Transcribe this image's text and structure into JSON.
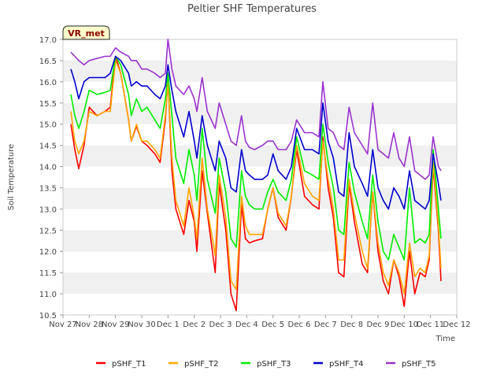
{
  "chart_data": {
    "type": "line",
    "title": "Peltier SHF Temperatures",
    "xlabel": "Time",
    "ylabel": "Soil Temperature",
    "badge": "VR_met",
    "ylim": [
      10.5,
      17.0
    ],
    "yticks": [
      "10.5",
      "11.0",
      "11.5",
      "12.0",
      "12.5",
      "13.0",
      "13.5",
      "14.0",
      "14.5",
      "15.0",
      "15.5",
      "16.0",
      "16.5",
      "17.0"
    ],
    "xlim": [
      0,
      15
    ],
    "xticks": [
      "Nov 27",
      "Nov 28",
      "Nov 29",
      "Nov 30",
      "Dec 1",
      "Dec 2",
      "Dec 3",
      "Dec 4",
      "Dec 5",
      "Dec 6",
      "Dec 7",
      "Dec 8",
      "Dec 9",
      "Dec 10",
      "Dec 11",
      "Dec 12"
    ],
    "grid": "horizontal bands",
    "legend_position": "bottom",
    "colors": [
      "#ff0000",
      "#ffa500",
      "#00ee00",
      "#0000cc",
      "#9a32cd"
    ],
    "series": [
      {
        "name": "pSHF_T1",
        "x": [
          0.3,
          0.45,
          0.6,
          0.8,
          1.0,
          1.3,
          1.6,
          1.8,
          2.0,
          2.2,
          2.5,
          2.6,
          2.8,
          3.0,
          3.2,
          3.5,
          3.7,
          3.9,
          4.0,
          4.15,
          4.3,
          4.6,
          4.8,
          5.0,
          5.1,
          5.3,
          5.5,
          5.8,
          5.95,
          6.2,
          6.4,
          6.6,
          6.8,
          6.95,
          7.1,
          7.3,
          7.6,
          7.8,
          8.0,
          8.2,
          8.5,
          8.7,
          8.9,
          9.2,
          9.5,
          9.75,
          9.9,
          10.1,
          10.3,
          10.5,
          10.7,
          10.9,
          11.1,
          11.4,
          11.6,
          11.8,
          12.0,
          12.2,
          12.4,
          12.6,
          12.8,
          13.0,
          13.2,
          13.4,
          13.6,
          13.8,
          13.95,
          14.1,
          14.3,
          14.4
        ],
        "values": [
          15.0,
          14.4,
          13.95,
          14.5,
          15.4,
          15.2,
          15.3,
          15.4,
          16.6,
          16.2,
          15.1,
          14.6,
          14.95,
          14.6,
          14.5,
          14.3,
          14.1,
          15.1,
          16.1,
          13.9,
          13.0,
          12.4,
          13.2,
          12.7,
          12.0,
          13.9,
          12.9,
          11.5,
          13.6,
          12.5,
          11.0,
          10.6,
          13.1,
          12.3,
          12.2,
          12.25,
          12.3,
          13.0,
          13.5,
          12.8,
          12.5,
          13.3,
          14.4,
          13.3,
          13.1,
          13.0,
          14.7,
          13.5,
          12.8,
          11.5,
          11.4,
          13.6,
          12.7,
          11.7,
          11.5,
          13.4,
          12.0,
          11.3,
          11.0,
          11.8,
          11.4,
          10.7,
          12.0,
          11.0,
          11.5,
          11.4,
          11.8,
          14.0,
          12.5,
          11.3
        ]
      },
      {
        "name": "pSHF_T2",
        "x": [
          0.3,
          0.45,
          0.6,
          0.8,
          1.0,
          1.3,
          1.6,
          1.8,
          2.0,
          2.2,
          2.5,
          2.6,
          2.8,
          3.0,
          3.2,
          3.5,
          3.7,
          3.9,
          4.0,
          4.15,
          4.3,
          4.6,
          4.8,
          5.0,
          5.1,
          5.3,
          5.5,
          5.8,
          5.95,
          6.2,
          6.4,
          6.6,
          6.8,
          6.95,
          7.1,
          7.3,
          7.6,
          7.8,
          8.0,
          8.2,
          8.5,
          8.7,
          8.9,
          9.2,
          9.5,
          9.75,
          9.9,
          10.1,
          10.3,
          10.5,
          10.7,
          10.9,
          11.1,
          11.4,
          11.6,
          11.8,
          12.0,
          12.2,
          12.4,
          12.6,
          12.8,
          13.0,
          13.2,
          13.4,
          13.6,
          13.8,
          13.95,
          14.1,
          14.3,
          14.4
        ],
        "values": [
          15.3,
          14.6,
          14.3,
          14.6,
          15.3,
          15.2,
          15.3,
          15.3,
          16.5,
          16.2,
          15.1,
          14.6,
          15.0,
          14.6,
          14.6,
          14.4,
          14.2,
          15.2,
          16.0,
          14.2,
          13.2,
          12.6,
          13.5,
          12.8,
          12.3,
          14.2,
          13.0,
          11.9,
          13.8,
          12.8,
          11.3,
          11.1,
          13.3,
          12.6,
          12.4,
          12.4,
          12.4,
          13.0,
          13.5,
          12.9,
          12.6,
          13.3,
          14.5,
          13.6,
          13.3,
          13.2,
          14.6,
          13.7,
          13.0,
          11.8,
          11.8,
          13.7,
          12.9,
          12.0,
          11.6,
          13.4,
          12.2,
          11.5,
          11.2,
          11.8,
          11.5,
          11.0,
          12.2,
          11.4,
          11.6,
          11.5,
          11.9,
          14.1,
          12.6,
          11.6
        ]
      },
      {
        "name": "pSHF_T3",
        "x": [
          0.3,
          0.45,
          0.6,
          0.8,
          1.0,
          1.3,
          1.6,
          1.8,
          2.0,
          2.2,
          2.5,
          2.6,
          2.8,
          3.0,
          3.2,
          3.5,
          3.7,
          3.9,
          4.0,
          4.15,
          4.3,
          4.6,
          4.8,
          5.0,
          5.1,
          5.3,
          5.5,
          5.8,
          5.95,
          6.2,
          6.4,
          6.6,
          6.8,
          6.95,
          7.1,
          7.3,
          7.6,
          7.8,
          8.0,
          8.2,
          8.5,
          8.7,
          8.9,
          9.2,
          9.5,
          9.75,
          9.9,
          10.1,
          10.3,
          10.5,
          10.7,
          10.9,
          11.1,
          11.4,
          11.6,
          11.8,
          12.0,
          12.2,
          12.4,
          12.6,
          12.8,
          13.0,
          13.2,
          13.4,
          13.6,
          13.8,
          13.95,
          14.1,
          14.3,
          14.4
        ],
        "values": [
          15.7,
          15.2,
          14.9,
          15.3,
          15.8,
          15.7,
          15.75,
          15.8,
          16.6,
          16.4,
          15.7,
          15.2,
          15.6,
          15.3,
          15.4,
          15.1,
          14.9,
          15.6,
          16.2,
          15.2,
          14.2,
          13.6,
          14.4,
          13.8,
          13.2,
          14.9,
          13.7,
          12.9,
          14.2,
          13.4,
          12.3,
          12.1,
          13.9,
          13.3,
          13.1,
          13.0,
          13.0,
          13.4,
          13.7,
          13.4,
          13.2,
          13.7,
          14.7,
          13.9,
          13.8,
          13.7,
          15.0,
          14.1,
          13.5,
          12.5,
          12.4,
          14.1,
          13.4,
          12.7,
          12.3,
          13.8,
          12.7,
          12.0,
          11.8,
          12.4,
          12.1,
          11.8,
          13.5,
          12.2,
          12.3,
          12.2,
          12.4,
          14.4,
          13.0,
          12.3
        ]
      },
      {
        "name": "pSHF_T4",
        "x": [
          0.3,
          0.45,
          0.6,
          0.8,
          1.0,
          1.3,
          1.6,
          1.8,
          2.0,
          2.2,
          2.5,
          2.6,
          2.8,
          3.0,
          3.2,
          3.5,
          3.7,
          3.9,
          4.0,
          4.15,
          4.3,
          4.6,
          4.8,
          5.0,
          5.1,
          5.3,
          5.5,
          5.8,
          5.95,
          6.2,
          6.4,
          6.6,
          6.8,
          6.95,
          7.1,
          7.3,
          7.6,
          7.8,
          8.0,
          8.2,
          8.5,
          8.7,
          8.9,
          9.2,
          9.5,
          9.75,
          9.9,
          10.1,
          10.3,
          10.5,
          10.7,
          10.9,
          11.1,
          11.4,
          11.6,
          11.8,
          12.0,
          12.2,
          12.4,
          12.6,
          12.8,
          13.0,
          13.2,
          13.4,
          13.6,
          13.8,
          13.95,
          14.1,
          14.3,
          14.4
        ],
        "values": [
          16.3,
          16.0,
          15.6,
          16.0,
          16.1,
          16.1,
          16.1,
          16.2,
          16.6,
          16.5,
          16.2,
          15.9,
          16.0,
          15.9,
          15.9,
          15.7,
          15.6,
          15.9,
          16.4,
          15.8,
          15.3,
          14.7,
          15.3,
          14.6,
          14.2,
          15.2,
          14.5,
          13.9,
          14.6,
          14.2,
          13.5,
          13.4,
          14.4,
          13.9,
          13.8,
          13.7,
          13.7,
          13.8,
          14.3,
          13.9,
          13.7,
          14.0,
          14.9,
          14.4,
          14.4,
          14.3,
          15.5,
          14.6,
          14.2,
          13.4,
          13.3,
          14.8,
          14.0,
          13.6,
          13.3,
          14.4,
          13.5,
          13.2,
          13.0,
          13.5,
          13.3,
          13.0,
          13.9,
          13.2,
          13.1,
          13.0,
          13.2,
          14.3,
          13.6,
          13.2
        ]
      },
      {
        "name": "pSHF_T5",
        "x": [
          0.3,
          0.45,
          0.6,
          0.8,
          1.0,
          1.3,
          1.6,
          1.8,
          2.0,
          2.2,
          2.5,
          2.6,
          2.8,
          3.0,
          3.2,
          3.5,
          3.7,
          3.9,
          4.0,
          4.15,
          4.3,
          4.6,
          4.8,
          5.0,
          5.1,
          5.3,
          5.5,
          5.8,
          5.95,
          6.2,
          6.4,
          6.6,
          6.8,
          6.95,
          7.1,
          7.3,
          7.6,
          7.8,
          8.0,
          8.2,
          8.5,
          8.7,
          8.9,
          9.2,
          9.5,
          9.75,
          9.9,
          10.1,
          10.3,
          10.5,
          10.7,
          10.9,
          11.1,
          11.4,
          11.6,
          11.8,
          12.0,
          12.2,
          12.4,
          12.6,
          12.8,
          13.0,
          13.2,
          13.4,
          13.6,
          13.8,
          13.95,
          14.1,
          14.3,
          14.4
        ],
        "values": [
          16.7,
          16.6,
          16.5,
          16.4,
          16.5,
          16.55,
          16.6,
          16.6,
          16.8,
          16.7,
          16.6,
          16.5,
          16.5,
          16.3,
          16.3,
          16.2,
          16.1,
          16.2,
          17.0,
          16.3,
          15.9,
          15.7,
          15.9,
          15.6,
          15.3,
          16.1,
          15.3,
          14.9,
          15.5,
          15.0,
          14.6,
          14.5,
          15.2,
          14.6,
          14.45,
          14.4,
          14.5,
          14.6,
          14.6,
          14.4,
          14.4,
          14.6,
          15.1,
          14.8,
          14.8,
          14.7,
          16.0,
          14.9,
          14.8,
          14.5,
          14.4,
          15.4,
          14.8,
          14.5,
          14.3,
          15.5,
          14.4,
          14.3,
          14.2,
          14.8,
          14.2,
          14.0,
          14.7,
          13.9,
          13.8,
          13.7,
          13.8,
          14.7,
          14.0,
          13.9
        ]
      }
    ]
  }
}
